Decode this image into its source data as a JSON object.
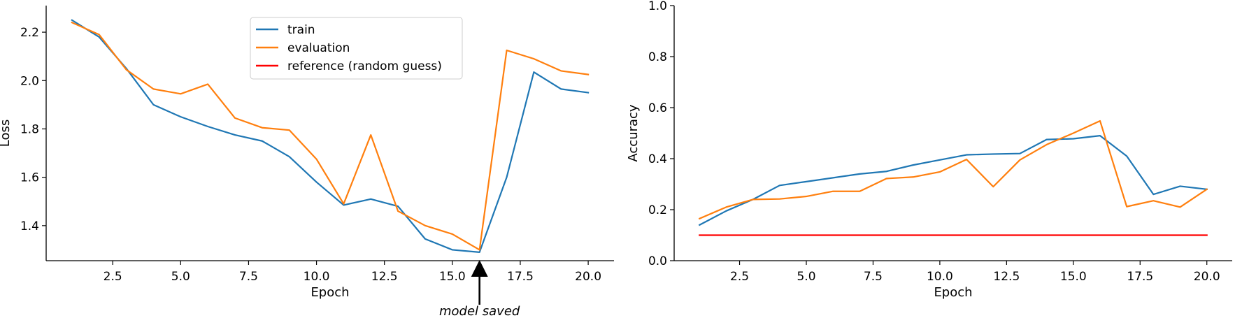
{
  "chart_data": [
    {
      "type": "line",
      "xlabel": "Epoch",
      "ylabel": "Loss",
      "xlim": [
        0.05,
        20.95
      ],
      "ylim": [
        1.255,
        2.31
      ],
      "xticks": [
        2.5,
        5.0,
        7.5,
        10.0,
        12.5,
        15.0,
        17.5,
        20.0
      ],
      "xtick_labels": [
        "2.5",
        "5.0",
        "7.5",
        "10.0",
        "12.5",
        "15.0",
        "17.5",
        "20.0"
      ],
      "yticks": [
        1.4,
        1.6,
        1.8,
        2.0,
        2.2
      ],
      "ytick_labels": [
        "1.4",
        "1.6",
        "1.8",
        "2.0",
        "2.2"
      ],
      "x": [
        1,
        2,
        3,
        4,
        5,
        6,
        7,
        8,
        9,
        10,
        11,
        12,
        13,
        14,
        15,
        16,
        17,
        18,
        19,
        20
      ],
      "series": [
        {
          "name": "train",
          "color": "#1f77b4",
          "values": [
            2.25,
            2.18,
            2.05,
            1.9,
            1.85,
            1.81,
            1.775,
            1.75,
            1.685,
            1.58,
            1.485,
            1.51,
            1.48,
            1.345,
            1.3,
            1.29,
            1.6,
            2.035,
            1.965,
            1.95
          ]
        },
        {
          "name": "evaluation",
          "color": "#ff7f0e",
          "values": [
            2.24,
            2.19,
            2.045,
            1.965,
            1.945,
            1.985,
            1.845,
            1.805,
            1.795,
            1.675,
            1.49,
            1.775,
            1.46,
            1.4,
            1.365,
            1.3,
            2.125,
            2.09,
            2.04,
            2.025
          ]
        }
      ],
      "legend": {
        "placement": "upper-center",
        "entries": [
          {
            "label": "train",
            "color": "#1f77b4"
          },
          {
            "label": "evaluation",
            "color": "#ff7f0e"
          },
          {
            "label": "reference (random guess)",
            "color": "#ff0000"
          }
        ]
      },
      "annotation": {
        "text": "model saved",
        "x": 16
      }
    },
    {
      "type": "line",
      "xlabel": "Epoch",
      "ylabel": "Accuracy",
      "xlim": [
        0.05,
        20.95
      ],
      "ylim": [
        0.0,
        1.0
      ],
      "xticks": [
        2.5,
        5.0,
        7.5,
        10.0,
        12.5,
        15.0,
        17.5,
        20.0
      ],
      "xtick_labels": [
        "2.5",
        "5.0",
        "7.5",
        "10.0",
        "12.5",
        "15.0",
        "17.5",
        "20.0"
      ],
      "yticks": [
        0.0,
        0.2,
        0.4,
        0.6,
        0.8,
        1.0
      ],
      "ytick_labels": [
        "0.0",
        "0.2",
        "0.4",
        "0.6",
        "0.8",
        "1.0"
      ],
      "x": [
        1,
        2,
        3,
        4,
        5,
        6,
        7,
        8,
        9,
        10,
        11,
        12,
        13,
        14,
        15,
        16,
        17,
        18,
        19,
        20
      ],
      "series": [
        {
          "name": "train",
          "color": "#1f77b4",
          "values": [
            0.14,
            0.195,
            0.24,
            0.295,
            0.31,
            0.325,
            0.34,
            0.35,
            0.375,
            0.395,
            0.415,
            0.418,
            0.42,
            0.475,
            0.478,
            0.49,
            0.41,
            0.26,
            0.292,
            0.28
          ]
        },
        {
          "name": "evaluation",
          "color": "#ff7f0e",
          "values": [
            0.165,
            0.21,
            0.24,
            0.242,
            0.252,
            0.272,
            0.272,
            0.322,
            0.328,
            0.348,
            0.397,
            0.29,
            0.395,
            0.455,
            0.5,
            0.548,
            0.212,
            0.235,
            0.21,
            0.28
          ]
        },
        {
          "name": "reference (random guess)",
          "color": "#ff0000",
          "values": [
            0.1,
            0.1,
            0.1,
            0.1,
            0.1,
            0.1,
            0.1,
            0.1,
            0.1,
            0.1,
            0.1,
            0.1,
            0.1,
            0.1,
            0.1,
            0.1,
            0.1,
            0.1,
            0.1,
            0.1
          ]
        }
      ]
    }
  ]
}
